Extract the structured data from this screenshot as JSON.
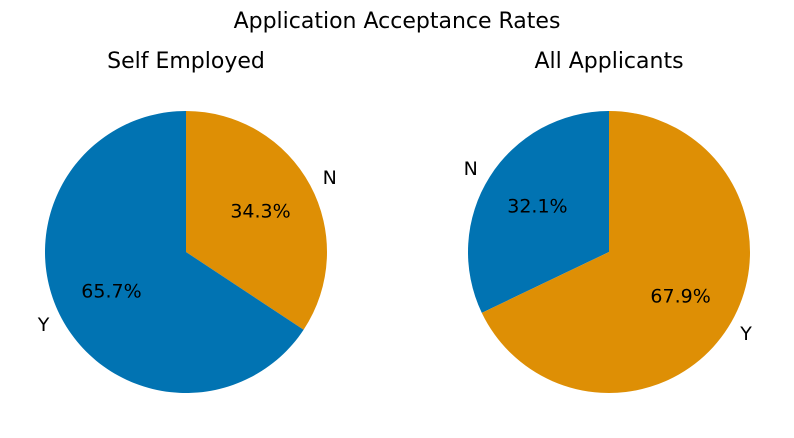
{
  "title": "Application Acceptance Rates",
  "chart_data": [
    {
      "type": "pie",
      "title": "Self Employed",
      "categories": [
        "N",
        "Y"
      ],
      "values": [
        34.3,
        65.7
      ],
      "percent_labels": [
        "34.3%",
        "65.7%"
      ],
      "colors": [
        "#DE8F05",
        "#0173B2"
      ],
      "start_angle_deg": 90,
      "direction": "clockwise",
      "legend": "none"
    },
    {
      "type": "pie",
      "title": "All Applicants",
      "categories": [
        "N",
        "Y"
      ],
      "values": [
        32.1,
        67.9
      ],
      "percent_labels": [
        "32.1%",
        "67.9%"
      ],
      "colors": [
        "#0173B2",
        "#DE8F05"
      ],
      "start_angle_deg": 90,
      "direction": "counterclockwise",
      "legend": "none"
    }
  ]
}
